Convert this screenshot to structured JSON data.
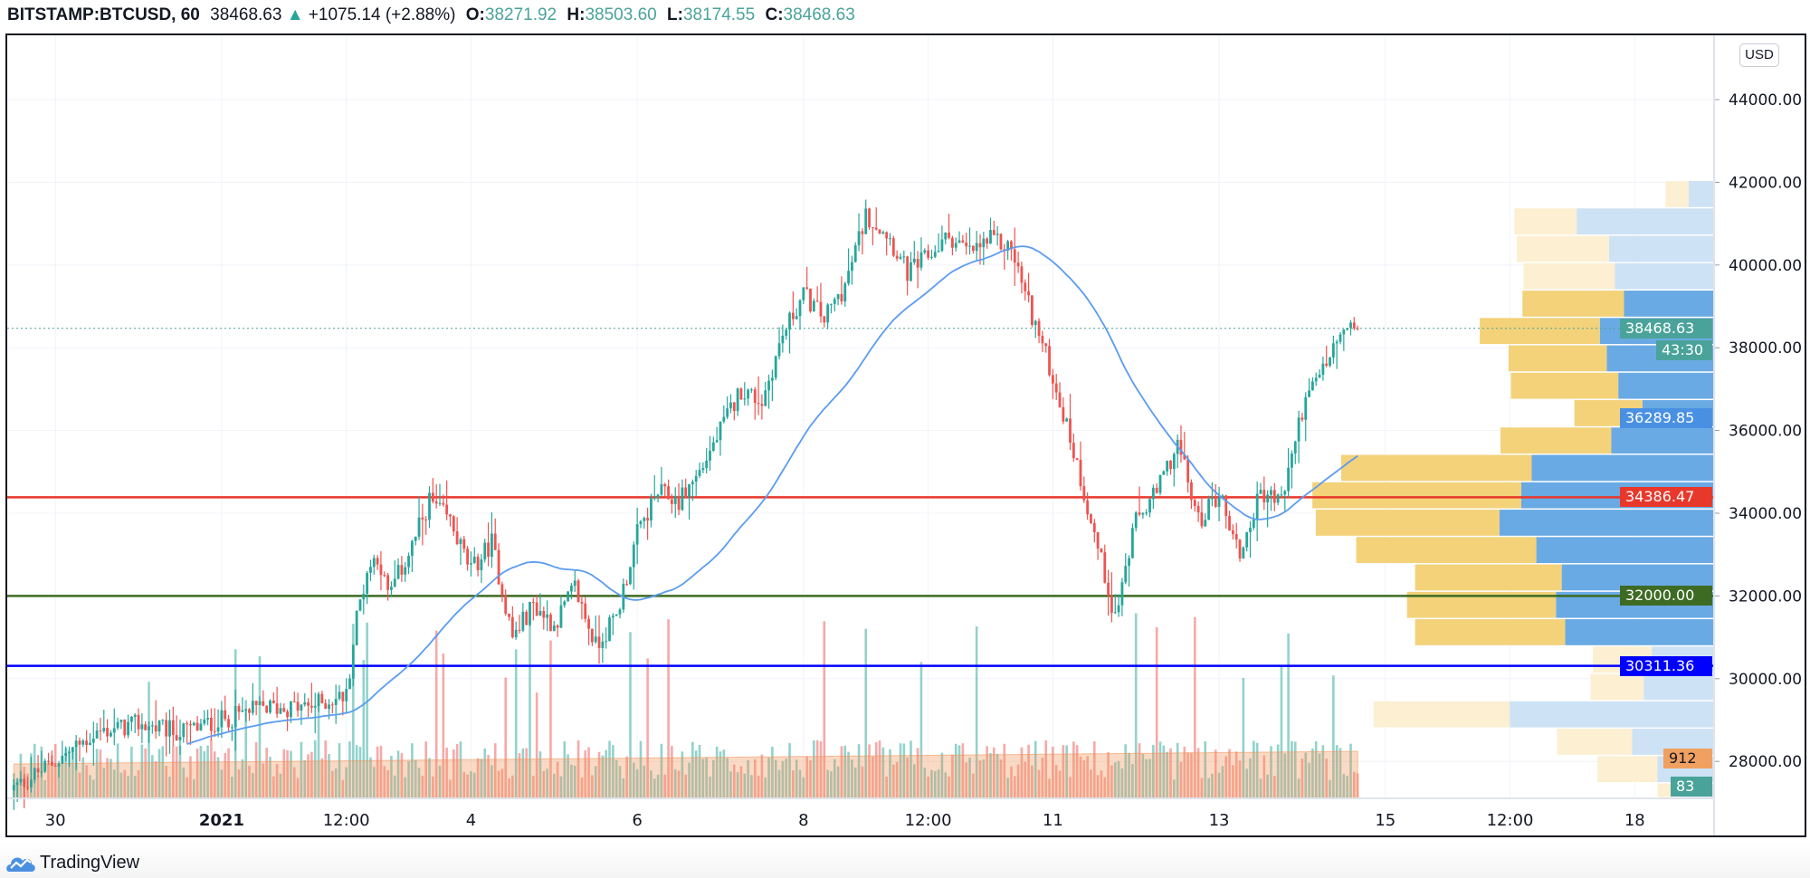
{
  "header": {
    "symbol": "BITSTAMP:BTCUSD, 60",
    "last": "38468.63",
    "change": "+1075.14 (+2.88%)",
    "o_label": "O:",
    "o": "38271.92",
    "h_label": "H:",
    "h": "38503.60",
    "l_label": "L:",
    "l": "38174.55",
    "c_label": "C:",
    "c": "38468.63",
    "direction_icon": "triangle-up-icon"
  },
  "currency_button": "USD",
  "brand": "TradingView",
  "colors": {
    "up": "#26a69a",
    "down": "#ef5350",
    "ma": "#5b9cf0",
    "line_red": "#e8382b",
    "line_green": "#3e6b23",
    "line_blue": "#0000ff",
    "profile_up": "#6aaae4",
    "profile_down": "#f3d27a",
    "profile_up_light": "#cde2f5",
    "profile_down_light": "#fcefd2"
  },
  "price_labels": {
    "last": "38468.63",
    "countdown": "43:30",
    "ma": "36289.85",
    "red": "34386.47",
    "green": "32000.00",
    "blue": "30311.36",
    "volume_ma": "912",
    "volume": "83"
  },
  "chart_data": {
    "type": "candlestick",
    "interval": "60",
    "y_ticks": [
      "44000.00",
      "42000.00",
      "40000.00",
      "38000.00",
      "36000.00",
      "34000.00",
      "32000.00",
      "30000.00",
      "28000.00"
    ],
    "ylim": [
      27000,
      45200
    ],
    "x_ticks": [
      {
        "label": "30",
        "hour": 0,
        "bold": false
      },
      {
        "label": "2021",
        "hour": 48,
        "bold": true
      },
      {
        "label": "12:00",
        "hour": 84,
        "bold": false
      },
      {
        "label": "4",
        "hour": 120,
        "bold": false
      },
      {
        "label": "6",
        "hour": 168,
        "bold": false
      },
      {
        "label": "8",
        "hour": 216,
        "bold": false
      },
      {
        "label": "12:00",
        "hour": 252,
        "bold": false
      },
      {
        "label": "11",
        "hour": 288,
        "bold": false
      },
      {
        "label": "13",
        "hour": 336,
        "bold": false
      },
      {
        "label": "15",
        "hour": 384,
        "bold": false
      },
      {
        "label": "12:00",
        "hour": 420,
        "bold": false
      },
      {
        "label": "18",
        "hour": 456,
        "bold": false
      }
    ],
    "approx_close_path": [
      [
        -13,
        27300
      ],
      [
        0,
        28000
      ],
      [
        12,
        28700
      ],
      [
        24,
        28900
      ],
      [
        36,
        28700
      ],
      [
        48,
        29000
      ],
      [
        60,
        29300
      ],
      [
        72,
        29300
      ],
      [
        84,
        29600
      ],
      [
        87,
        31500
      ],
      [
        90,
        32600
      ],
      [
        93,
        33000
      ],
      [
        96,
        32000
      ],
      [
        102,
        33000
      ],
      [
        108,
        34300
      ],
      [
        114,
        33800
      ],
      [
        120,
        32600
      ],
      [
        126,
        33300
      ],
      [
        132,
        31000
      ],
      [
        138,
        31800
      ],
      [
        144,
        31300
      ],
      [
        150,
        32200
      ],
      [
        156,
        30800
      ],
      [
        162,
        31500
      ],
      [
        168,
        33500
      ],
      [
        174,
        34500
      ],
      [
        180,
        34300
      ],
      [
        186,
        35000
      ],
      [
        192,
        36000
      ],
      [
        198,
        37000
      ],
      [
        204,
        36700
      ],
      [
        210,
        38300
      ],
      [
        216,
        39300
      ],
      [
        222,
        38700
      ],
      [
        228,
        39500
      ],
      [
        234,
        41200
      ],
      [
        240,
        40800
      ],
      [
        246,
        39800
      ],
      [
        252,
        40200
      ],
      [
        258,
        40700
      ],
      [
        264,
        40300
      ],
      [
        270,
        40600
      ],
      [
        276,
        40400
      ],
      [
        282,
        38800
      ],
      [
        288,
        37300
      ],
      [
        294,
        35500
      ],
      [
        300,
        33500
      ],
      [
        306,
        31500
      ],
      [
        312,
        33800
      ],
      [
        318,
        34500
      ],
      [
        324,
        35700
      ],
      [
        330,
        33800
      ],
      [
        336,
        34500
      ],
      [
        342,
        33000
      ],
      [
        348,
        34500
      ],
      [
        354,
        34300
      ],
      [
        360,
        36500
      ],
      [
        366,
        37500
      ],
      [
        372,
        38400
      ],
      [
        376,
        38468.63
      ]
    ],
    "horizontal_lines": [
      {
        "price": 34386.47,
        "color": "#e8382b"
      },
      {
        "price": 32000,
        "color": "#3e6b23"
      },
      {
        "price": 30311.36,
        "color": "#0000ff"
      }
    ],
    "last_price": 38468.63,
    "volume_profile": {
      "top_price": 42030,
      "row_size": 662,
      "value_area_rows": [
        4,
        16
      ],
      "rows": [
        {
          "up": 22,
          "down": 20
        },
        {
          "up": 119,
          "down": 54
        },
        {
          "up": 91,
          "down": 80
        },
        {
          "up": 86,
          "down": 79
        },
        {
          "up": 78,
          "down": 88
        },
        {
          "up": 99,
          "down": 104
        },
        {
          "up": 93,
          "down": 85
        },
        {
          "up": 83,
          "down": 93
        },
        {
          "up": 62,
          "down": 59
        },
        {
          "up": 89,
          "down": 96
        },
        {
          "up": 158,
          "down": 165
        },
        {
          "up": 167,
          "down": 181
        },
        {
          "up": 186,
          "down": 159
        },
        {
          "up": 154,
          "down": 156
        },
        {
          "up": 132,
          "down": 127
        },
        {
          "up": 137,
          "down": 129
        },
        {
          "up": 129,
          "down": 130
        },
        {
          "up": 54,
          "down": 51
        },
        {
          "up": 61,
          "down": 46
        },
        {
          "up": 177,
          "down": 118
        },
        {
          "up": 71,
          "down": 65
        },
        {
          "up": 49,
          "down": 52
        },
        {
          "up": 29,
          "down": 20
        }
      ]
    }
  }
}
